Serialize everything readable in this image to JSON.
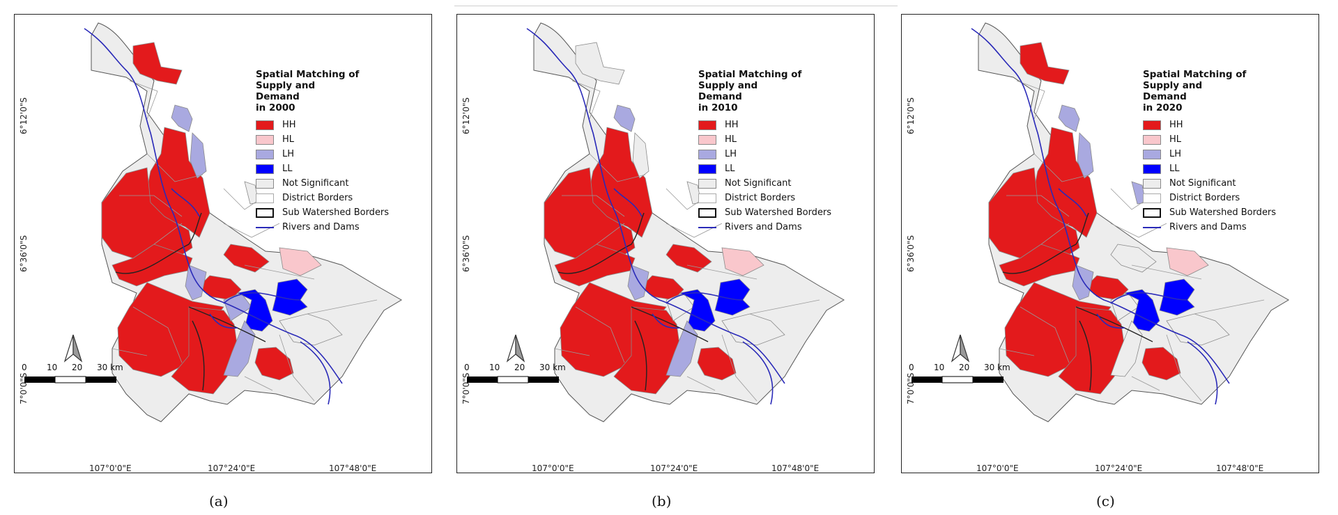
{
  "panels": [
    {
      "id": "a",
      "caption": "(a)",
      "legend_title_lines": [
        "Spatial Matching of",
        "Supply and Demand",
        "in 2000"
      ]
    },
    {
      "id": "b",
      "caption": "(b)",
      "legend_title_lines": [
        "Spatial Matching of",
        "Supply and Demand",
        "in 2010"
      ]
    },
    {
      "id": "c",
      "caption": "(c)",
      "legend_title_lines": [
        "Spatial Matching of",
        "Supply and Demand",
        "in 2020"
      ]
    }
  ],
  "legend": {
    "classes": [
      {
        "label": "HH",
        "color": "#e31a1c"
      },
      {
        "label": "HL",
        "color": "#f9c7cc"
      },
      {
        "label": "LH",
        "color": "#a9a9e0"
      },
      {
        "label": "LL",
        "color": "#0000ff"
      },
      {
        "label": "Not Significant",
        "color": "#ededed"
      }
    ],
    "borders": [
      {
        "label": "District Borders",
        "style": "thin-grey"
      },
      {
        "label": "Sub Watershed Borders",
        "style": "thick-black"
      },
      {
        "label": "Rivers and Dams",
        "style": "blue-line"
      }
    ]
  },
  "axes": {
    "lat_labels": [
      "6°12'0\"S",
      "6°36'0\"S",
      "7°0'0\"S"
    ],
    "lon_labels": [
      "107°0'0\"E",
      "107°24'0\"E",
      "107°48'0\"E"
    ]
  },
  "scalebar": {
    "ticks": [
      "0",
      "10",
      "20",
      "30 km"
    ]
  },
  "colors": {
    "HH": "#e31a1c",
    "HL": "#f9c7cc",
    "LH": "#a9a9e0",
    "LL": "#0000ff",
    "NS": "#ededed",
    "river": "#2a2ab8"
  }
}
